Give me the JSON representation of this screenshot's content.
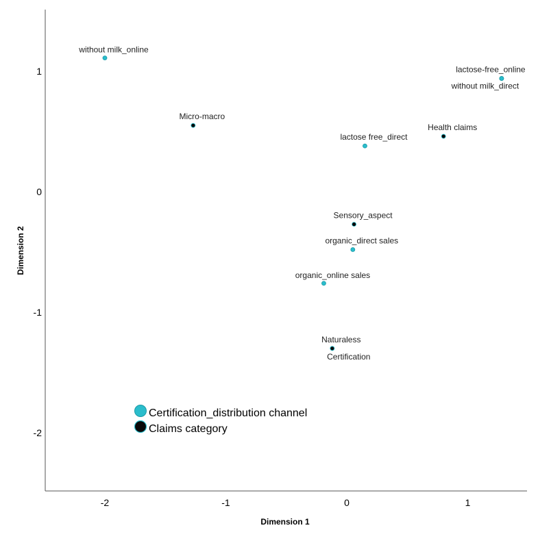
{
  "chart_data": {
    "type": "scatter",
    "xlabel": "Dimension 1",
    "ylabel": "Dimension 2",
    "xlim": [
      -2.5,
      1.5
    ],
    "ylim": [
      -2.5,
      1.5
    ],
    "xticks": [
      -2,
      -1,
      0,
      1
    ],
    "yticks": [
      1,
      0,
      -1,
      -2
    ],
    "grid": false,
    "legend_position": "bottom-left",
    "series": [
      {
        "name": "Certification_distribution channel",
        "color": "#2bbdcc",
        "points": [
          {
            "label": "without milk_online",
            "x": -2.0,
            "y": 1.11
          },
          {
            "label": "lactose-free_online",
            "x": 1.28,
            "y": 0.94
          },
          {
            "label": "without milk_direct",
            "x": 1.28,
            "y": 0.94
          },
          {
            "label": "lactose free_direct",
            "x": 0.15,
            "y": 0.38
          },
          {
            "label": "organic_direct sales",
            "x": 0.05,
            "y": -0.48
          },
          {
            "label": "organic_online sales",
            "x": -0.19,
            "y": -0.76
          },
          {
            "label": "Certification",
            "x": -0.12,
            "y": -1.3
          }
        ]
      },
      {
        "name": "Claims category",
        "color": "#0a0a0a",
        "points": [
          {
            "label": "Micro-macro",
            "x": -1.27,
            "y": 0.55
          },
          {
            "label": "Health claims",
            "x": 0.8,
            "y": 0.46
          },
          {
            "label": "Sensory_aspect",
            "x": 0.06,
            "y": -0.27
          },
          {
            "label": "Naturaless",
            "x": -0.12,
            "y": -1.3
          }
        ]
      }
    ]
  }
}
